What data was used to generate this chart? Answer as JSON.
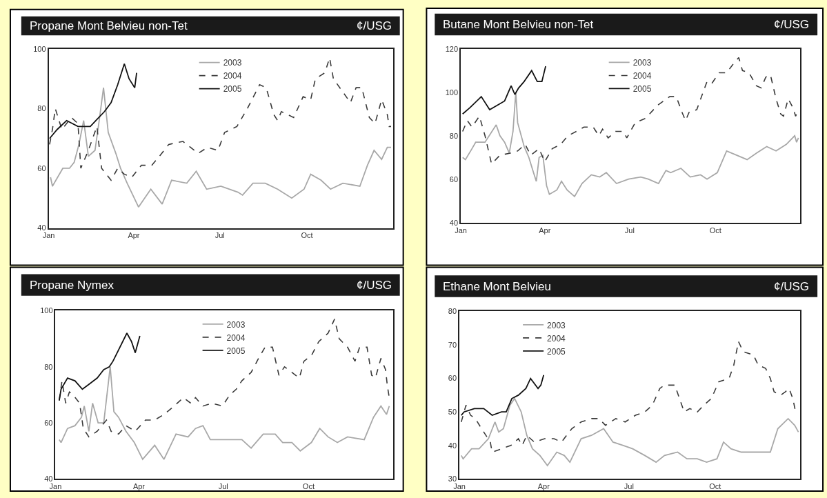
{
  "chart_data": [
    {
      "type": "line",
      "title": "Propane Mont Belvieu non-Tet",
      "ylabel": "¢/USG",
      "xlim": [
        "--01-01",
        "--12-31"
      ],
      "xticks": [
        {
          "value": "--01-01",
          "label": "Jan"
        },
        {
          "value": "--04-01",
          "label": "Apr"
        },
        {
          "value": "--07-01",
          "label": "Jul"
        },
        {
          "value": "--10-01",
          "label": "Oct"
        }
      ],
      "ylim": [
        40,
        100
      ],
      "yticks": [
        40,
        60,
        80,
        100
      ],
      "grid": false,
      "legend": "top",
      "marker": "none",
      "series": [
        {
          "name": "2003",
          "color": "#a8a8a8",
          "line_style": "solid",
          "x": [
            "--01-03",
            "--01-05",
            "--01-16",
            "--01-23",
            "--01-28",
            "--02-02",
            "--02-07",
            "--02-12",
            "--02-19",
            "--02-23",
            "--02-28",
            "--03-05",
            "--03-13",
            "--03-18",
            "--03-25",
            "--04-06",
            "--04-19",
            "--05-01",
            "--05-11",
            "--05-27",
            "--06-06",
            "--06-17",
            "--07-02",
            "--07-20",
            "--07-25",
            "--08-05",
            "--08-18",
            "--08-31",
            "--09-15",
            "--09-28",
            "--10-05",
            "--10-16",
            "--10-26",
            "--11-08",
            "--11-26",
            "--12-04",
            "--12-11",
            "--12-19",
            "--12-25",
            "--12-29"
          ],
          "values": [
            57,
            54,
            60,
            60,
            62,
            68,
            76,
            64,
            66,
            75,
            87,
            72,
            65,
            60,
            55,
            47,
            53,
            48,
            56,
            55,
            59,
            53,
            54,
            52,
            51,
            55,
            55,
            53,
            50,
            53,
            58,
            56,
            53,
            55,
            54,
            61,
            66,
            63,
            67,
            67
          ]
        },
        {
          "name": "2004",
          "color": "#3a3a3a",
          "line_style": "dashed",
          "x": [
            "--01-02",
            "--01-05",
            "--01-08",
            "--01-15",
            "--01-25",
            "--02-01",
            "--02-04",
            "--02-12",
            "--02-21",
            "--02-26",
            "--03-08",
            "--03-15",
            "--03-22",
            "--03-30",
            "--04-09",
            "--04-20",
            "--04-28",
            "--05-08",
            "--05-23",
            "--05-31",
            "--06-08",
            "--06-18",
            "--06-29",
            "--07-06",
            "--07-19",
            "--07-30",
            "--08-12",
            "--08-19",
            "--08-27",
            "--08-31",
            "--09-04",
            "--09-17",
            "--09-27",
            "--10-05",
            "--10-10",
            "--10-20",
            "--10-25",
            "--10-29",
            "--11-07",
            "--11-16",
            "--11-22",
            "--11-28",
            "--12-06",
            "--12-12",
            "--12-19",
            "--12-25",
            "--12-27",
            "--12-29"
          ],
          "values": [
            68,
            73,
            80,
            73,
            77,
            75,
            60,
            66,
            74,
            60,
            56,
            60,
            58,
            57,
            61,
            61,
            64,
            68,
            69,
            67,
            65,
            67,
            66,
            72,
            74,
            80,
            88,
            87,
            78,
            76,
            79,
            77,
            84,
            83,
            90,
            92,
            97,
            90,
            86,
            82,
            87,
            87,
            77,
            75,
            83,
            78,
            74,
            74
          ]
        },
        {
          "name": "2005",
          "color": "#111111",
          "line_style": "solid",
          "x": [
            "--01-02",
            "--01-10",
            "--01-20",
            "--02-01",
            "--02-14",
            "--02-20",
            "--03-01",
            "--03-08",
            "--03-15",
            "--03-22",
            "--03-27",
            "--04-02",
            "--04-04"
          ],
          "values": [
            70,
            73,
            76,
            74,
            74,
            76,
            79,
            82,
            88,
            95,
            90,
            87,
            92
          ]
        }
      ]
    },
    {
      "type": "line",
      "title": "Butane Mont Belvieu non-Tet",
      "ylabel": "¢/USG",
      "xlim": [
        "--01-01",
        "--12-31"
      ],
      "xticks": [
        {
          "value": "--01-01",
          "label": "Jan"
        },
        {
          "value": "--04-01",
          "label": "Apr"
        },
        {
          "value": "--07-01",
          "label": "Jul"
        },
        {
          "value": "--10-01",
          "label": "Oct"
        }
      ],
      "ylim": [
        40,
        120
      ],
      "yticks": [
        40,
        60,
        80,
        100,
        120
      ],
      "grid": false,
      "legend": "top",
      "marker": "none",
      "series": [
        {
          "name": "2003",
          "color": "#a8a8a8",
          "line_style": "solid",
          "x": [
            "--01-03",
            "--01-06",
            "--01-13",
            "--01-17",
            "--01-27",
            "--02-08",
            "--02-12",
            "--02-17",
            "--02-22",
            "--02-26",
            "--03-01",
            "--03-03",
            "--03-10",
            "--03-15",
            "--03-20",
            "--03-23",
            "--03-26",
            "--03-30",
            "--04-03",
            "--04-06",
            "--04-14",
            "--04-19",
            "--04-25",
            "--05-03",
            "--05-11",
            "--05-21",
            "--05-30",
            "--06-06",
            "--06-17",
            "--06-30",
            "--07-13",
            "--07-21",
            "--08-01",
            "--08-09",
            "--08-14",
            "--08-25",
            "--09-04",
            "--09-15",
            "--09-22",
            "--10-03",
            "--10-13",
            "--10-24",
            "--11-04",
            "--11-14",
            "--11-25",
            "--12-05",
            "--12-16",
            "--12-25",
            "--12-27",
            "--12-29"
          ],
          "values": [
            70,
            69,
            74,
            77,
            77,
            85,
            80,
            77,
            72,
            82,
            100,
            86,
            75,
            70,
            63,
            59,
            70,
            71,
            57,
            53,
            55,
            59,
            55,
            52,
            58,
            62,
            61,
            63,
            58,
            60,
            61,
            60,
            58,
            64,
            63,
            65,
            61,
            62,
            60,
            63,
            73,
            71,
            69,
            72,
            75,
            73,
            76,
            80,
            77,
            79
          ]
        },
        {
          "name": "2004",
          "color": "#3a3a3a",
          "line_style": "dashed",
          "x": [
            "--01-03",
            "--01-08",
            "--01-13",
            "--01-21",
            "--01-27",
            "--02-03",
            "--02-12",
            "--02-23",
            "--03-03",
            "--03-11",
            "--03-17",
            "--03-26",
            "--04-01",
            "--04-09",
            "--04-18",
            "--04-26",
            "--05-05",
            "--05-13",
            "--05-23",
            "--05-29",
            "--06-02",
            "--06-08",
            "--06-16",
            "--06-24",
            "--06-28",
            "--07-07",
            "--07-18",
            "--07-31",
            "--08-13",
            "--08-20",
            "--08-26",
            "--08-30",
            "--09-03",
            "--09-11",
            "--09-22",
            "--09-27",
            "--10-05",
            "--10-13",
            "--10-20",
            "--10-26",
            "--10-30",
            "--11-06",
            "--11-14",
            "--11-19",
            "--11-24",
            "--11-29",
            "--12-05",
            "--12-10",
            "--12-13",
            "--12-18",
            "--12-23",
            "--12-26",
            "--12-29"
          ],
          "values": [
            82,
            87,
            84,
            89,
            80,
            67,
            71,
            72,
            73,
            76,
            71,
            74,
            68,
            74,
            76,
            80,
            82,
            84,
            84,
            80,
            83,
            79,
            82,
            82,
            79,
            86,
            88,
            94,
            98,
            98,
            91,
            87,
            91,
            92,
            105,
            104,
            109,
            109,
            113,
            116,
            110,
            109,
            103,
            102,
            107,
            108,
            97,
            90,
            89,
            97,
            93,
            89,
            92
          ]
        },
        {
          "name": "2005",
          "color": "#111111",
          "line_style": "solid",
          "x": [
            "--01-03",
            "--01-11",
            "--01-23",
            "--02-01",
            "--02-09",
            "--02-17",
            "--02-24",
            "--02-28",
            "--03-04",
            "--03-10",
            "--03-18",
            "--03-24",
            "--03-29",
            "--04-02"
          ],
          "values": [
            90,
            93,
            98,
            92,
            94,
            96,
            103,
            99,
            102,
            105,
            110,
            105,
            105,
            112
          ]
        }
      ]
    },
    {
      "type": "line",
      "title": "Propane Nymex",
      "ylabel": "¢/USG",
      "xlim": [
        "--01-01",
        "--12-31"
      ],
      "xticks": [
        {
          "value": "--01-01",
          "label": "Jan"
        },
        {
          "value": "--04-01",
          "label": "Apr"
        },
        {
          "value": "--07-01",
          "label": "Jul"
        },
        {
          "value": "--10-01",
          "label": "Oct"
        }
      ],
      "ylim": [
        40,
        100
      ],
      "yticks": [
        40,
        60,
        80,
        100
      ],
      "grid": false,
      "legend": "top",
      "marker": "none",
      "series": [
        {
          "name": "2003",
          "color": "#a8a8a8",
          "line_style": "solid",
          "x": [
            "--01-05",
            "--01-07",
            "--01-14",
            "--01-22",
            "--01-29",
            "--02-01",
            "--02-06",
            "--02-10",
            "--02-16",
            "--02-22",
            "--03-01",
            "--03-05",
            "--03-10",
            "--03-18",
            "--03-27",
            "--04-05",
            "--04-18",
            "--04-28",
            "--05-11",
            "--05-24",
            "--06-01",
            "--06-09",
            "--06-17",
            "--07-02",
            "--07-21",
            "--07-31",
            "--08-13",
            "--08-26",
            "--09-03",
            "--09-13",
            "--09-22",
            "--10-04",
            "--10-13",
            "--10-22",
            "--11-01",
            "--11-12",
            "--11-30",
            "--12-10",
            "--12-18",
            "--12-24",
            "--12-27"
          ],
          "values": [
            54,
            53,
            58,
            59,
            62,
            66,
            57,
            67,
            60,
            60,
            80,
            64,
            62,
            57,
            53,
            47,
            52,
            47,
            56,
            55,
            58,
            59,
            54,
            54,
            54,
            51,
            56,
            56,
            53,
            53,
            50,
            53,
            58,
            55,
            53,
            55,
            54,
            62,
            66,
            63,
            66
          ]
        },
        {
          "name": "2004",
          "color": "#3a3a3a",
          "line_style": "dashed",
          "x": [
            "--01-05",
            "--01-08",
            "--01-12",
            "--01-16",
            "--01-20",
            "--01-27",
            "--01-31",
            "--02-06",
            "--02-15",
            "--02-25",
            "--03-02",
            "--03-10",
            "--03-18",
            "--03-28",
            "--04-08",
            "--04-18",
            "--04-28",
            "--05-09",
            "--05-19",
            "--05-27",
            "--06-01",
            "--06-09",
            "--06-19",
            "--06-30",
            "--07-08",
            "--07-15",
            "--07-21",
            "--07-31",
            "--08-08",
            "--08-15",
            "--08-23",
            "--08-30",
            "--09-05",
            "--09-13",
            "--09-21",
            "--09-26",
            "--10-04",
            "--10-12",
            "--10-22",
            "--10-29",
            "--11-03",
            "--11-12",
            "--11-20",
            "--11-25",
            "--12-03",
            "--12-08",
            "--12-12",
            "--12-18",
            "--12-23",
            "--12-25",
            "--12-27"
          ],
          "values": [
            68,
            75,
            67,
            71,
            70,
            67,
            58,
            55,
            57,
            61,
            57,
            56,
            59,
            57,
            61,
            61,
            63,
            66,
            69,
            67,
            69,
            66,
            67,
            66,
            70,
            72,
            75,
            78,
            83,
            87,
            87,
            77,
            80,
            78,
            76,
            82,
            84,
            89,
            92,
            97,
            90,
            87,
            82,
            87,
            87,
            77,
            76,
            83,
            79,
            73,
            69
          ]
        },
        {
          "name": "2005",
          "color": "#111111",
          "line_style": "solid",
          "x": [
            "--01-05",
            "--01-07",
            "--01-14",
            "--01-22",
            "--01-30",
            "--02-07",
            "--02-15",
            "--02-22",
            "--02-28",
            "--03-04",
            "--03-10",
            "--03-19",
            "--03-24",
            "--03-28",
            "--04-02"
          ],
          "values": [
            68,
            72,
            76,
            75,
            72,
            74,
            76,
            79,
            80,
            82,
            86,
            92,
            89,
            85,
            91
          ]
        }
      ]
    },
    {
      "type": "line",
      "title": "Ethane Mont Belvieu",
      "ylabel": "¢/USG",
      "xlim": [
        "--01-01",
        "--12-31"
      ],
      "xticks": [
        {
          "value": "--01-01",
          "label": "Jan"
        },
        {
          "value": "--04-01",
          "label": "Apr"
        },
        {
          "value": "--07-01",
          "label": "Jul"
        },
        {
          "value": "--10-01",
          "label": "Oct"
        }
      ],
      "ylim": [
        30,
        80
      ],
      "yticks": [
        30,
        40,
        50,
        60,
        70,
        80
      ],
      "grid": false,
      "legend": "top left",
      "marker": "none",
      "series": [
        {
          "name": "2003",
          "color": "#a8a8a8",
          "line_style": "solid",
          "x": [
            "--01-03",
            "--01-05",
            "--01-14",
            "--01-22",
            "--02-01",
            "--02-08",
            "--02-12",
            "--02-17",
            "--02-24",
            "--03-01",
            "--03-08",
            "--03-14",
            "--03-20",
            "--03-28",
            "--04-05",
            "--04-15",
            "--04-23",
            "--04-29",
            "--05-11",
            "--05-22",
            "--06-04",
            "--06-14",
            "--06-25",
            "--07-05",
            "--07-18",
            "--07-30",
            "--08-08",
            "--08-22",
            "--09-01",
            "--09-12",
            "--09-22",
            "--10-03",
            "--10-10",
            "--10-18",
            "--10-29",
            "--11-11",
            "--11-29",
            "--12-07",
            "--12-18",
            "--12-25",
            "--12-29"
          ],
          "values": [
            37,
            36,
            39,
            39,
            42,
            47,
            44,
            45,
            52,
            54,
            50,
            43,
            39,
            37,
            34,
            38,
            37,
            35,
            42,
            43,
            45,
            41,
            40,
            39,
            37,
            35,
            37,
            38,
            36,
            36,
            35,
            36,
            41,
            39,
            38,
            38,
            38,
            45,
            48,
            46,
            44
          ]
        },
        {
          "name": "2004",
          "color": "#3a3a3a",
          "line_style": "dashed",
          "x": [
            "--01-03",
            "--01-08",
            "--01-13",
            "--01-18",
            "--01-27",
            "--02-03",
            "--02-05",
            "--02-15",
            "--02-25",
            "--03-05",
            "--03-09",
            "--03-14",
            "--03-22",
            "--04-02",
            "--04-12",
            "--04-20",
            "--05-01",
            "--05-11",
            "--05-22",
            "--05-30",
            "--06-06",
            "--06-17",
            "--06-27",
            "--07-08",
            "--07-18",
            "--07-26",
            "--08-03",
            "--08-08",
            "--08-19",
            "--08-24",
            "--08-29",
            "--09-04",
            "--09-12",
            "--09-19",
            "--09-27",
            "--10-05",
            "--10-16",
            "--10-21",
            "--10-26",
            "--10-31",
            "--11-11",
            "--11-16",
            "--11-24",
            "--11-29",
            "--12-03",
            "--12-10",
            "--12-15",
            "--12-19",
            "--12-23",
            "--12-26",
            "--12-29"
          ],
          "values": [
            47,
            52,
            49,
            48,
            44,
            41,
            38,
            39,
            40,
            42,
            40,
            43,
            41,
            42,
            42,
            41,
            45,
            47,
            48,
            48,
            46,
            48,
            47,
            49,
            50,
            52,
            57,
            58,
            58,
            54,
            50,
            51,
            50,
            52,
            54,
            59,
            60,
            64,
            71,
            68,
            67,
            64,
            63,
            60,
            56,
            55,
            56,
            57,
            54,
            50,
            50
          ]
        },
        {
          "name": "2005",
          "color": "#111111",
          "line_style": "solid",
          "x": [
            "--01-03",
            "--01-06",
            "--01-17",
            "--01-27",
            "--02-05",
            "--02-15",
            "--02-20",
            "--02-26",
            "--03-05",
            "--03-13",
            "--03-18",
            "--03-26",
            "--03-29",
            "--04-01"
          ],
          "values": [
            49,
            50,
            51,
            51,
            49,
            50,
            50,
            54,
            55,
            57,
            60,
            57,
            58,
            61
          ]
        }
      ]
    }
  ]
}
